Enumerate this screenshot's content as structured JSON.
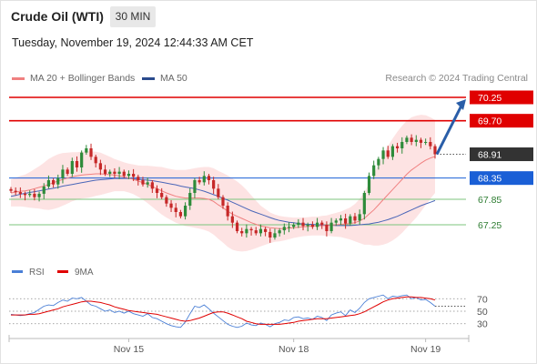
{
  "header": {
    "instrument": "Crude Oil (WTI)",
    "timeframe": "30 MIN"
  },
  "timestamp": "Tuesday, November 19, 2024 12:44:33 AM CET",
  "legend": {
    "items": [
      {
        "label": "MA 20 + Bollinger Bands",
        "color": "#f08080"
      },
      {
        "label": "MA 50",
        "color": "#2a4b8d"
      }
    ],
    "credit": "Research © 2024 Trading Central"
  },
  "colors": {
    "resistance": "#e00000",
    "pivot": "#1a5fd6",
    "support": "#7cc47c",
    "support_text": "#2e7d32",
    "last_price": "#333333",
    "bull": "#2e8b3a",
    "bear": "#c62828",
    "bollinger_fill": "#fde0e0",
    "ma20": "#f08080",
    "ma50": "#4a66b8",
    "rsi": "#4a7fd6",
    "rsi_ma": "#e00000",
    "arrow": "#2a5ea8"
  },
  "chart_data": [
    {
      "type": "candlestick",
      "title": "Crude Oil (WTI) 30 MIN",
      "x_tick_labels": [
        "Nov 15",
        "Nov 18",
        "Nov 19"
      ],
      "ylim": [
        66.8,
        70.4
      ],
      "levels": [
        {
          "value": 70.25,
          "label": "70.25",
          "kind": "resistance"
        },
        {
          "value": 69.7,
          "label": "69.70",
          "kind": "resistance"
        },
        {
          "value": 68.91,
          "label": "68.91",
          "kind": "last_price"
        },
        {
          "value": 68.35,
          "label": "68.35",
          "kind": "pivot"
        },
        {
          "value": 67.85,
          "label": "67.85",
          "kind": "support"
        },
        {
          "value": 67.25,
          "label": "67.25",
          "kind": "support"
        }
      ],
      "projection": {
        "from": 68.91,
        "to": 70.25
      },
      "closes": [
        68.05,
        68.02,
        67.98,
        67.95,
        67.98,
        67.9,
        67.98,
        68.15,
        68.3,
        68.2,
        68.35,
        68.55,
        68.45,
        68.75,
        68.6,
        68.95,
        69.05,
        68.85,
        68.7,
        68.55,
        68.45,
        68.5,
        68.45,
        68.5,
        68.4,
        68.45,
        68.38,
        68.3,
        68.2,
        68.25,
        68.1,
        68.0,
        67.9,
        67.75,
        67.65,
        67.55,
        67.45,
        67.7,
        68.0,
        68.3,
        68.25,
        68.4,
        68.3,
        68.1,
        67.9,
        67.7,
        67.45,
        67.3,
        67.1,
        67.05,
        67.15,
        67.12,
        67.05,
        67.15,
        67.08,
        66.95,
        67.05,
        67.12,
        67.2,
        67.2,
        67.25,
        67.3,
        67.22,
        67.25,
        67.2,
        67.3,
        67.25,
        67.1,
        67.3,
        67.35,
        67.4,
        67.28,
        67.45,
        67.35,
        67.5,
        68.0,
        68.4,
        68.65,
        68.8,
        69.0,
        68.85,
        69.1,
        69.05,
        69.2,
        69.3,
        69.2,
        69.25,
        69.18,
        69.2,
        69.1,
        68.91
      ],
      "ma20": [
        68.0,
        68.02,
        68.04,
        68.05,
        68.07,
        68.1,
        68.13,
        68.16,
        68.2,
        68.24,
        68.28,
        68.32,
        68.35,
        68.38,
        68.4,
        68.42,
        68.43,
        68.44,
        68.45,
        68.45,
        68.44,
        68.43,
        68.42,
        68.4,
        68.38,
        68.35,
        68.32,
        68.28,
        68.24,
        68.2,
        68.15,
        68.1,
        68.05,
        68.0,
        67.96,
        67.92,
        67.9,
        67.88,
        67.88,
        67.88,
        67.88,
        67.87,
        67.85,
        67.8,
        67.72,
        67.65,
        67.57,
        67.5,
        67.45,
        67.4,
        67.35,
        67.3,
        67.26,
        67.22,
        67.2,
        67.18,
        67.17,
        67.16,
        67.16,
        67.17,
        67.18,
        67.19,
        67.2,
        67.21,
        67.22,
        67.22,
        67.23,
        67.23,
        67.24,
        67.25,
        67.26,
        67.27,
        67.28,
        67.3,
        67.34,
        67.4,
        67.5,
        67.6,
        67.72,
        67.84,
        67.96,
        68.08,
        68.2,
        68.32,
        68.44,
        68.54,
        68.62,
        68.7,
        68.77,
        68.82,
        68.86
      ],
      "ma50": [
        67.92,
        67.94,
        67.97,
        67.99,
        68.01,
        68.03,
        68.05,
        68.07,
        68.09,
        68.11,
        68.13,
        68.16,
        68.18,
        68.2,
        68.22,
        68.24,
        68.26,
        68.28,
        68.3,
        68.31,
        68.32,
        68.33,
        68.34,
        68.34,
        68.34,
        68.34,
        68.33,
        68.32,
        68.31,
        68.3,
        68.29,
        68.27,
        68.25,
        68.23,
        68.21,
        68.19,
        68.16,
        68.14,
        68.12,
        68.1,
        68.07,
        68.04,
        68.0,
        67.96,
        67.92,
        67.87,
        67.83,
        67.78,
        67.73,
        67.68,
        67.63,
        67.58,
        67.54,
        67.5,
        67.46,
        67.42,
        67.38,
        67.35,
        67.33,
        67.31,
        67.3,
        67.28,
        67.27,
        67.26,
        67.26,
        67.25,
        67.25,
        67.24,
        67.24,
        67.23,
        67.23,
        67.23,
        67.23,
        67.24,
        67.25,
        67.26,
        67.27,
        67.29,
        67.31,
        67.34,
        67.37,
        67.41,
        67.45,
        67.5,
        67.55,
        67.6,
        67.65,
        67.7,
        67.74,
        67.78,
        67.82
      ],
      "bollinger_width": [
        0.32,
        0.34,
        0.36,
        0.38,
        0.42,
        0.46,
        0.5,
        0.55,
        0.6,
        0.62,
        0.63,
        0.62,
        0.6,
        0.58,
        0.56,
        0.55,
        0.55,
        0.54,
        0.52,
        0.5,
        0.46,
        0.42,
        0.38,
        0.36,
        0.34,
        0.34,
        0.35,
        0.37,
        0.4,
        0.44,
        0.48,
        0.52,
        0.56,
        0.58,
        0.6,
        0.62,
        0.64,
        0.66,
        0.68,
        0.7,
        0.72,
        0.74,
        0.76,
        0.78,
        0.8,
        0.82,
        0.84,
        0.84,
        0.82,
        0.78,
        0.72,
        0.64,
        0.56,
        0.48,
        0.42,
        0.36,
        0.32,
        0.3,
        0.28,
        0.26,
        0.24,
        0.23,
        0.22,
        0.22,
        0.22,
        0.22,
        0.23,
        0.24,
        0.26,
        0.28,
        0.3,
        0.34,
        0.38,
        0.44,
        0.52,
        0.62,
        0.72,
        0.84,
        0.96,
        1.06,
        1.14,
        1.2,
        1.24,
        1.26,
        1.26,
        1.24,
        1.2,
        1.14,
        1.06,
        0.96,
        0.86
      ]
    },
    {
      "type": "line",
      "title": "RSI",
      "ylim": [
        15,
        85
      ],
      "y_tick_labels": [
        "70",
        "50",
        "30"
      ],
      "y_ticks": [
        70,
        50,
        30
      ],
      "series": [
        {
          "name": "RSI",
          "values": [
            45,
            44,
            43,
            44,
            46,
            48,
            53,
            58,
            60,
            59,
            64,
            68,
            66,
            71,
            70,
            72,
            66,
            60,
            58,
            54,
            50,
            52,
            48,
            50,
            47,
            50,
            46,
            44,
            42,
            46,
            40,
            38,
            34,
            30,
            27,
            25,
            24,
            33,
            46,
            58,
            56,
            60,
            54,
            47,
            41,
            35,
            29,
            26,
            24,
            26,
            31,
            28,
            27,
            31,
            29,
            25,
            30,
            32,
            36,
            35,
            40,
            41,
            38,
            39,
            37,
            42,
            40,
            35,
            44,
            47,
            49,
            43,
            52,
            48,
            55,
            64,
            70,
            72,
            74,
            76,
            70,
            74,
            73,
            75,
            76,
            70,
            72,
            68,
            69,
            64,
            58
          ]
        },
        {
          "name": "9MA",
          "values": [
            44,
            44,
            44,
            44,
            45,
            45,
            46,
            48,
            50,
            52,
            54,
            57,
            59,
            61,
            63,
            65,
            66,
            66,
            65,
            64,
            62,
            60,
            57,
            55,
            53,
            51,
            50,
            49,
            48,
            47,
            46,
            45,
            43,
            41,
            39,
            37,
            35,
            34,
            35,
            37,
            39,
            42,
            45,
            48,
            49,
            49,
            47,
            44,
            41,
            38,
            34,
            32,
            30,
            29,
            29,
            29,
            29,
            29,
            30,
            31,
            32,
            34,
            35,
            36,
            37,
            38,
            38,
            38,
            39,
            40,
            41,
            42,
            43,
            44,
            46,
            49,
            53,
            57,
            61,
            65,
            68,
            70,
            71,
            72,
            73,
            73,
            72,
            72,
            71,
            70,
            68
          ]
        },
        {
          "name": "RSI-level-70",
          "values": []
        }
      ],
      "reference_lines": [
        70,
        50,
        30
      ]
    }
  ]
}
